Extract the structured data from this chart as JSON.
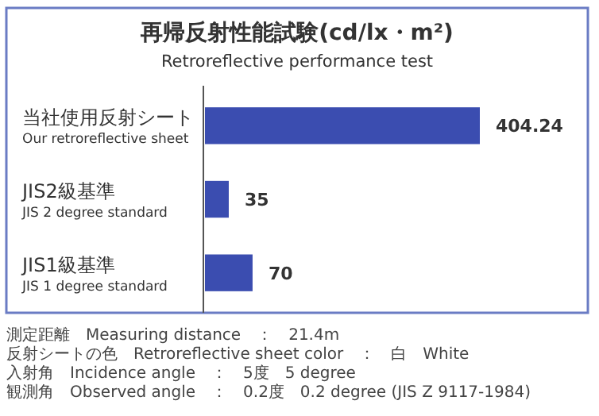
{
  "chart_data": {
    "type": "bar",
    "orientation": "horizontal",
    "title": "再帰反射性能試験(cd/lx・m²)",
    "subtitle": "Retroreflective performance test",
    "categories": [
      "当社使用反射シート\nOur retroreflective sheet",
      "JIS2級基準\nJIS 2 degree standard",
      "JIS1級基準\nJIS 1 degree standard"
    ],
    "values": [
      404.24,
      35,
      70
    ],
    "color": "#3b4db0",
    "data_labels": true,
    "annotations": [
      "測定距離　Measuring distance　：　21.4m",
      "反射シートの色　Retroreflective sheet color　：　白　White",
      "入射角　Incidence angle　：　5度　5 degree",
      "観測角　Observed angle　：　0.2度　0.2 degree (JIS Z 9117-1984)"
    ]
  }
}
